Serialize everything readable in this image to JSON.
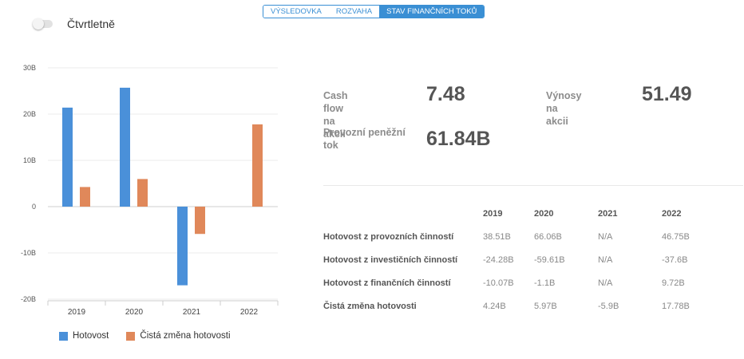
{
  "tabs": [
    {
      "label": "VÝSLEDOVKA",
      "active": false
    },
    {
      "label": "ROZVAHA",
      "active": false
    },
    {
      "label": "STAV FINANČNÍCH TOKŮ",
      "active": true
    }
  ],
  "toggle": {
    "label": "Čtvrtletně",
    "on": false
  },
  "colors": {
    "hotovost": "#4a90d9",
    "cista_zmena": "#e0885a",
    "accent": "#3a8fd4"
  },
  "chart_data": {
    "type": "bar",
    "categories": [
      "2019",
      "2020",
      "2021",
      "2022"
    ],
    "series": [
      {
        "name": "Hotovost",
        "values": [
          21.4,
          25.7,
          -17.0,
          null
        ]
      },
      {
        "name": "Čistá změna hotovosti",
        "values": [
          4.24,
          5.97,
          -5.9,
          17.78
        ]
      }
    ],
    "yticks": [
      "30B",
      "20B",
      "10B",
      "0",
      "-10B",
      "-20B"
    ],
    "ylim": [
      -20,
      30
    ],
    "grid": true,
    "legend": "bottom-left"
  },
  "metrics": {
    "cash_flow_label": "Cash flow na akcii",
    "cash_flow_value": "7.48",
    "vynosy_label": "Výnosy na akcii",
    "vynosy_value": "51.49",
    "provozni_label": "Provozní peněžní tok",
    "provozni_value": "61.84B"
  },
  "table": {
    "years": [
      "2019",
      "2020",
      "2021",
      "2022"
    ],
    "rows": [
      {
        "label": "Hotovost z provozních činností",
        "values": [
          "38.51B",
          "66.06B",
          "N/A",
          "46.75B"
        ]
      },
      {
        "label": "Hotovost z investičních činností",
        "values": [
          "-24.28B",
          "-59.61B",
          "N/A",
          "-37.6B"
        ]
      },
      {
        "label": "Hotovost z finančních činností",
        "values": [
          "-10.07B",
          "-1.1B",
          "N/A",
          "9.72B"
        ]
      },
      {
        "label": "Čistá změna hotovosti",
        "values": [
          "4.24B",
          "5.97B",
          "-5.9B",
          "17.78B"
        ]
      }
    ]
  }
}
